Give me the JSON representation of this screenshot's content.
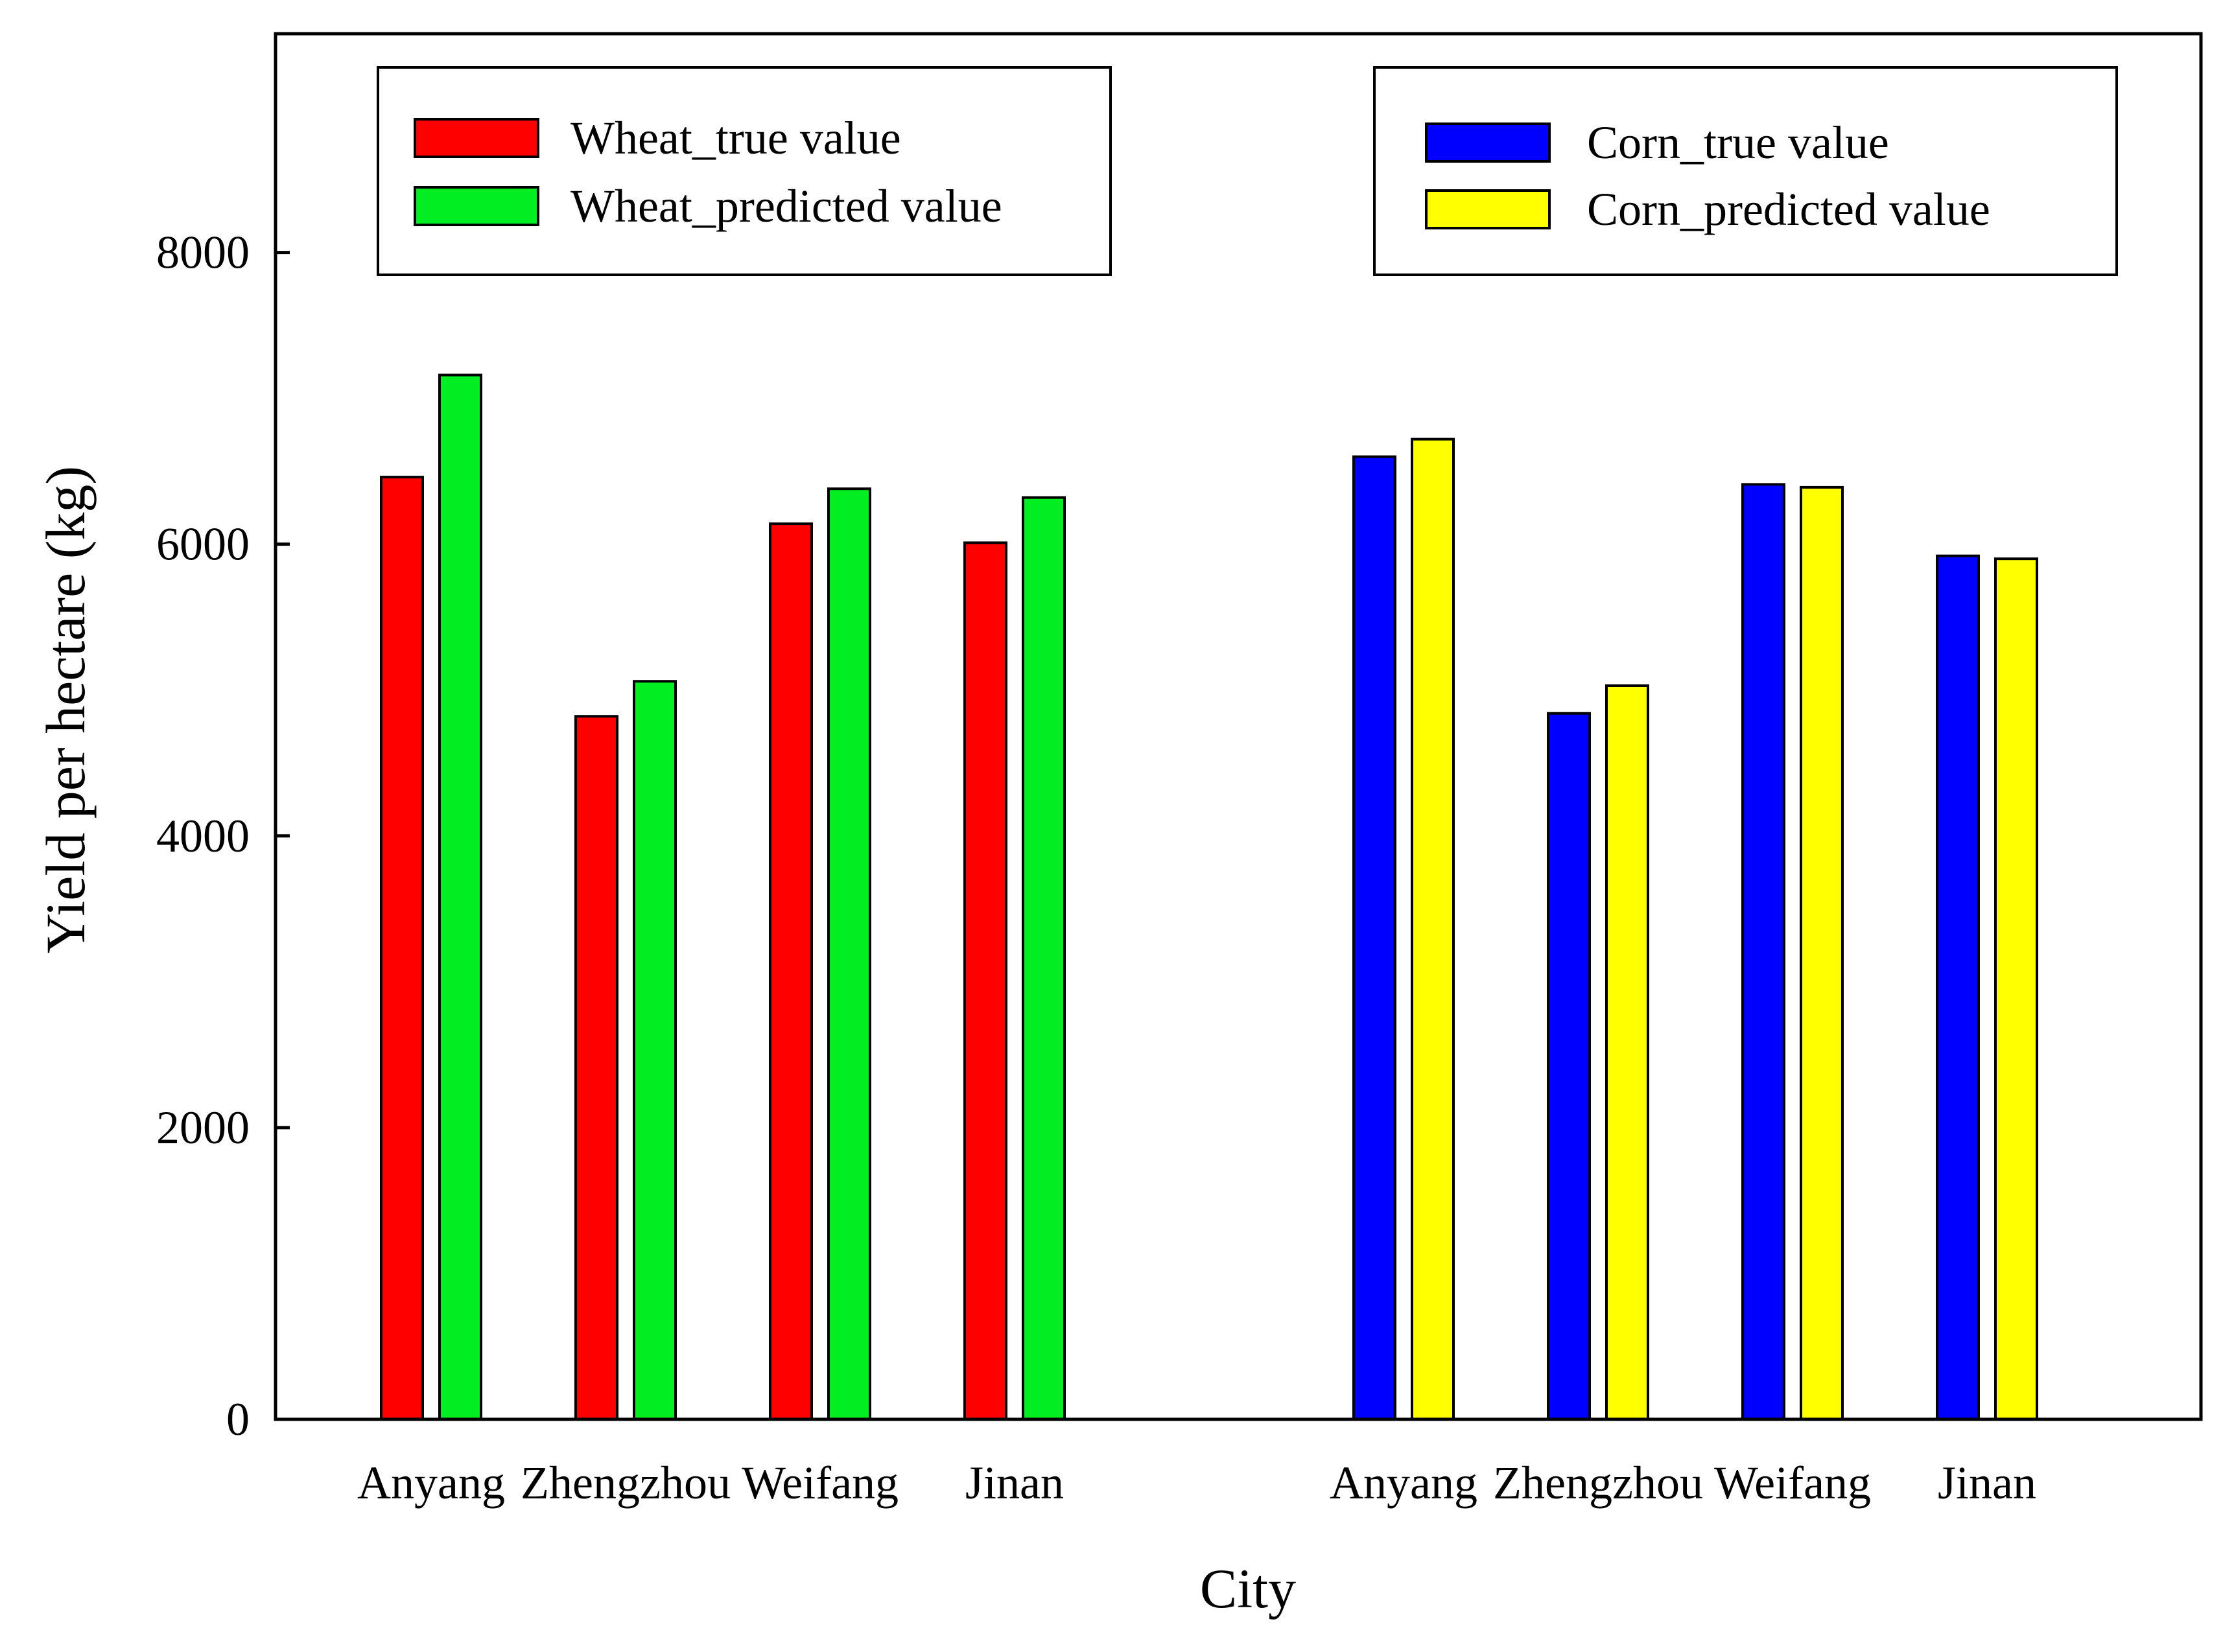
{
  "chart_data": {
    "type": "bar",
    "title": "",
    "xlabel": "City",
    "ylabel": "Yield per hectare (kg)",
    "ylim": [
      0,
      9500
    ],
    "yticks": [
      0,
      2000,
      4000,
      6000,
      8000
    ],
    "grid": false,
    "groups": [
      {
        "crop": "Wheat",
        "legend_placement": "top-left",
        "categories": [
          "Anyang",
          "Zhengzhou",
          "Weifang",
          "Jinan"
        ],
        "series": [
          {
            "name": "Wheat_true value",
            "color": "#ff0000",
            "values": [
              6460,
              4820,
              6140,
              6010
            ]
          },
          {
            "name": "Wheat_predicted value",
            "color": "#00ee22",
            "values": [
              7160,
              5060,
              6380,
              6320
            ]
          }
        ]
      },
      {
        "crop": "Corn",
        "legend_placement": "top-right",
        "categories": [
          "Anyang",
          "Zhengzhou",
          "Weifang",
          "Jinan"
        ],
        "series": [
          {
            "name": "Corn_true value",
            "color": "#0000ff",
            "values": [
              6600,
              4840,
              6410,
              5920
            ]
          },
          {
            "name": "Corn_predicted value",
            "color": "#ffff00",
            "values": [
              6720,
              5030,
              6390,
              5900
            ]
          }
        ]
      }
    ]
  }
}
